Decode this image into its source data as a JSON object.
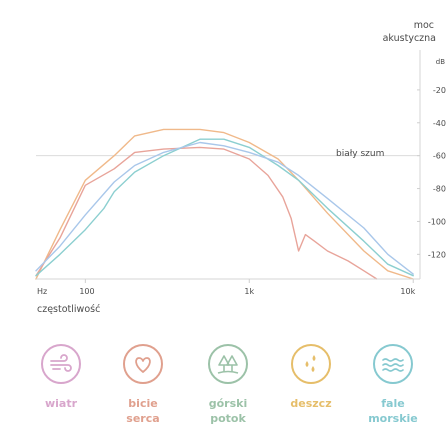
{
  "chart_data": {
    "type": "line",
    "ylabel": "moc akustyczna",
    "yunit": "dB",
    "yticks": [
      "-20",
      "-40",
      "-60",
      "-80",
      "-100",
      "-120"
    ],
    "ylim": [
      -135,
      0
    ],
    "xlabel": "częstotliwość",
    "xunit": "Hz",
    "xscale": "log",
    "xticks": [
      "100",
      "1k",
      "10k"
    ],
    "xlim": [
      50,
      11000
    ],
    "annotation": "biały szum",
    "reference_level": -60,
    "series": [
      {
        "color": "#f0b98a",
        "x": [
          50,
          70,
          100,
          150,
          200,
          300,
          500,
          700,
          1000,
          1500,
          2000,
          3000,
          5000,
          7000,
          10000
        ],
        "y": [
          -135,
          -105,
          -75,
          -60,
          -48,
          -44,
          -44,
          -46,
          -52,
          -62,
          -75,
          -95,
          -118,
          -130,
          -135
        ]
      },
      {
        "color": "#e8a49a",
        "x": [
          50,
          70,
          100,
          150,
          200,
          300,
          500,
          700,
          1000,
          1300,
          1600,
          1800,
          2000,
          2200,
          2500,
          3000,
          4000,
          5000,
          6000
        ],
        "y": [
          -133,
          -110,
          -78,
          -68,
          -58,
          -56,
          -55,
          -56,
          -62,
          -72,
          -85,
          -98,
          -118,
          -108,
          -112,
          -118,
          -124,
          -130,
          -135
        ]
      },
      {
        "color": "#8ccfd0",
        "x": [
          50,
          70,
          100,
          130,
          150,
          200,
          300,
          500,
          700,
          1000,
          1500,
          2000,
          3000,
          5000,
          7000,
          10000
        ],
        "y": [
          -133,
          -120,
          -105,
          -92,
          -82,
          -70,
          -60,
          -50,
          -50,
          -55,
          -66,
          -75,
          -92,
          -112,
          -126,
          -133
        ]
      },
      {
        "color": "#a9c7ea",
        "x": [
          50,
          70,
          100,
          150,
          200,
          300,
          500,
          700,
          1000,
          1500,
          2000,
          3000,
          5000,
          7000,
          10000
        ],
        "y": [
          -130,
          -115,
          -96,
          -76,
          -66,
          -58,
          -52,
          -54,
          -58,
          -64,
          -72,
          -86,
          -104,
          -120,
          -132
        ]
      }
    ]
  },
  "sounds": [
    {
      "label": "wiatr",
      "icon": "wind-icon",
      "color": "#d8a6cc"
    },
    {
      "label": "bicie\nserca",
      "icon": "heart-icon",
      "color": "#e0a08e"
    },
    {
      "label": "górski\npotok",
      "icon": "trees-icon",
      "color": "#9cc2a8"
    },
    {
      "label": "deszcz",
      "icon": "rain-icon",
      "color": "#e6be6a"
    },
    {
      "label": "fale\nmorskie",
      "icon": "wave-icon",
      "color": "#86c9d0"
    }
  ]
}
